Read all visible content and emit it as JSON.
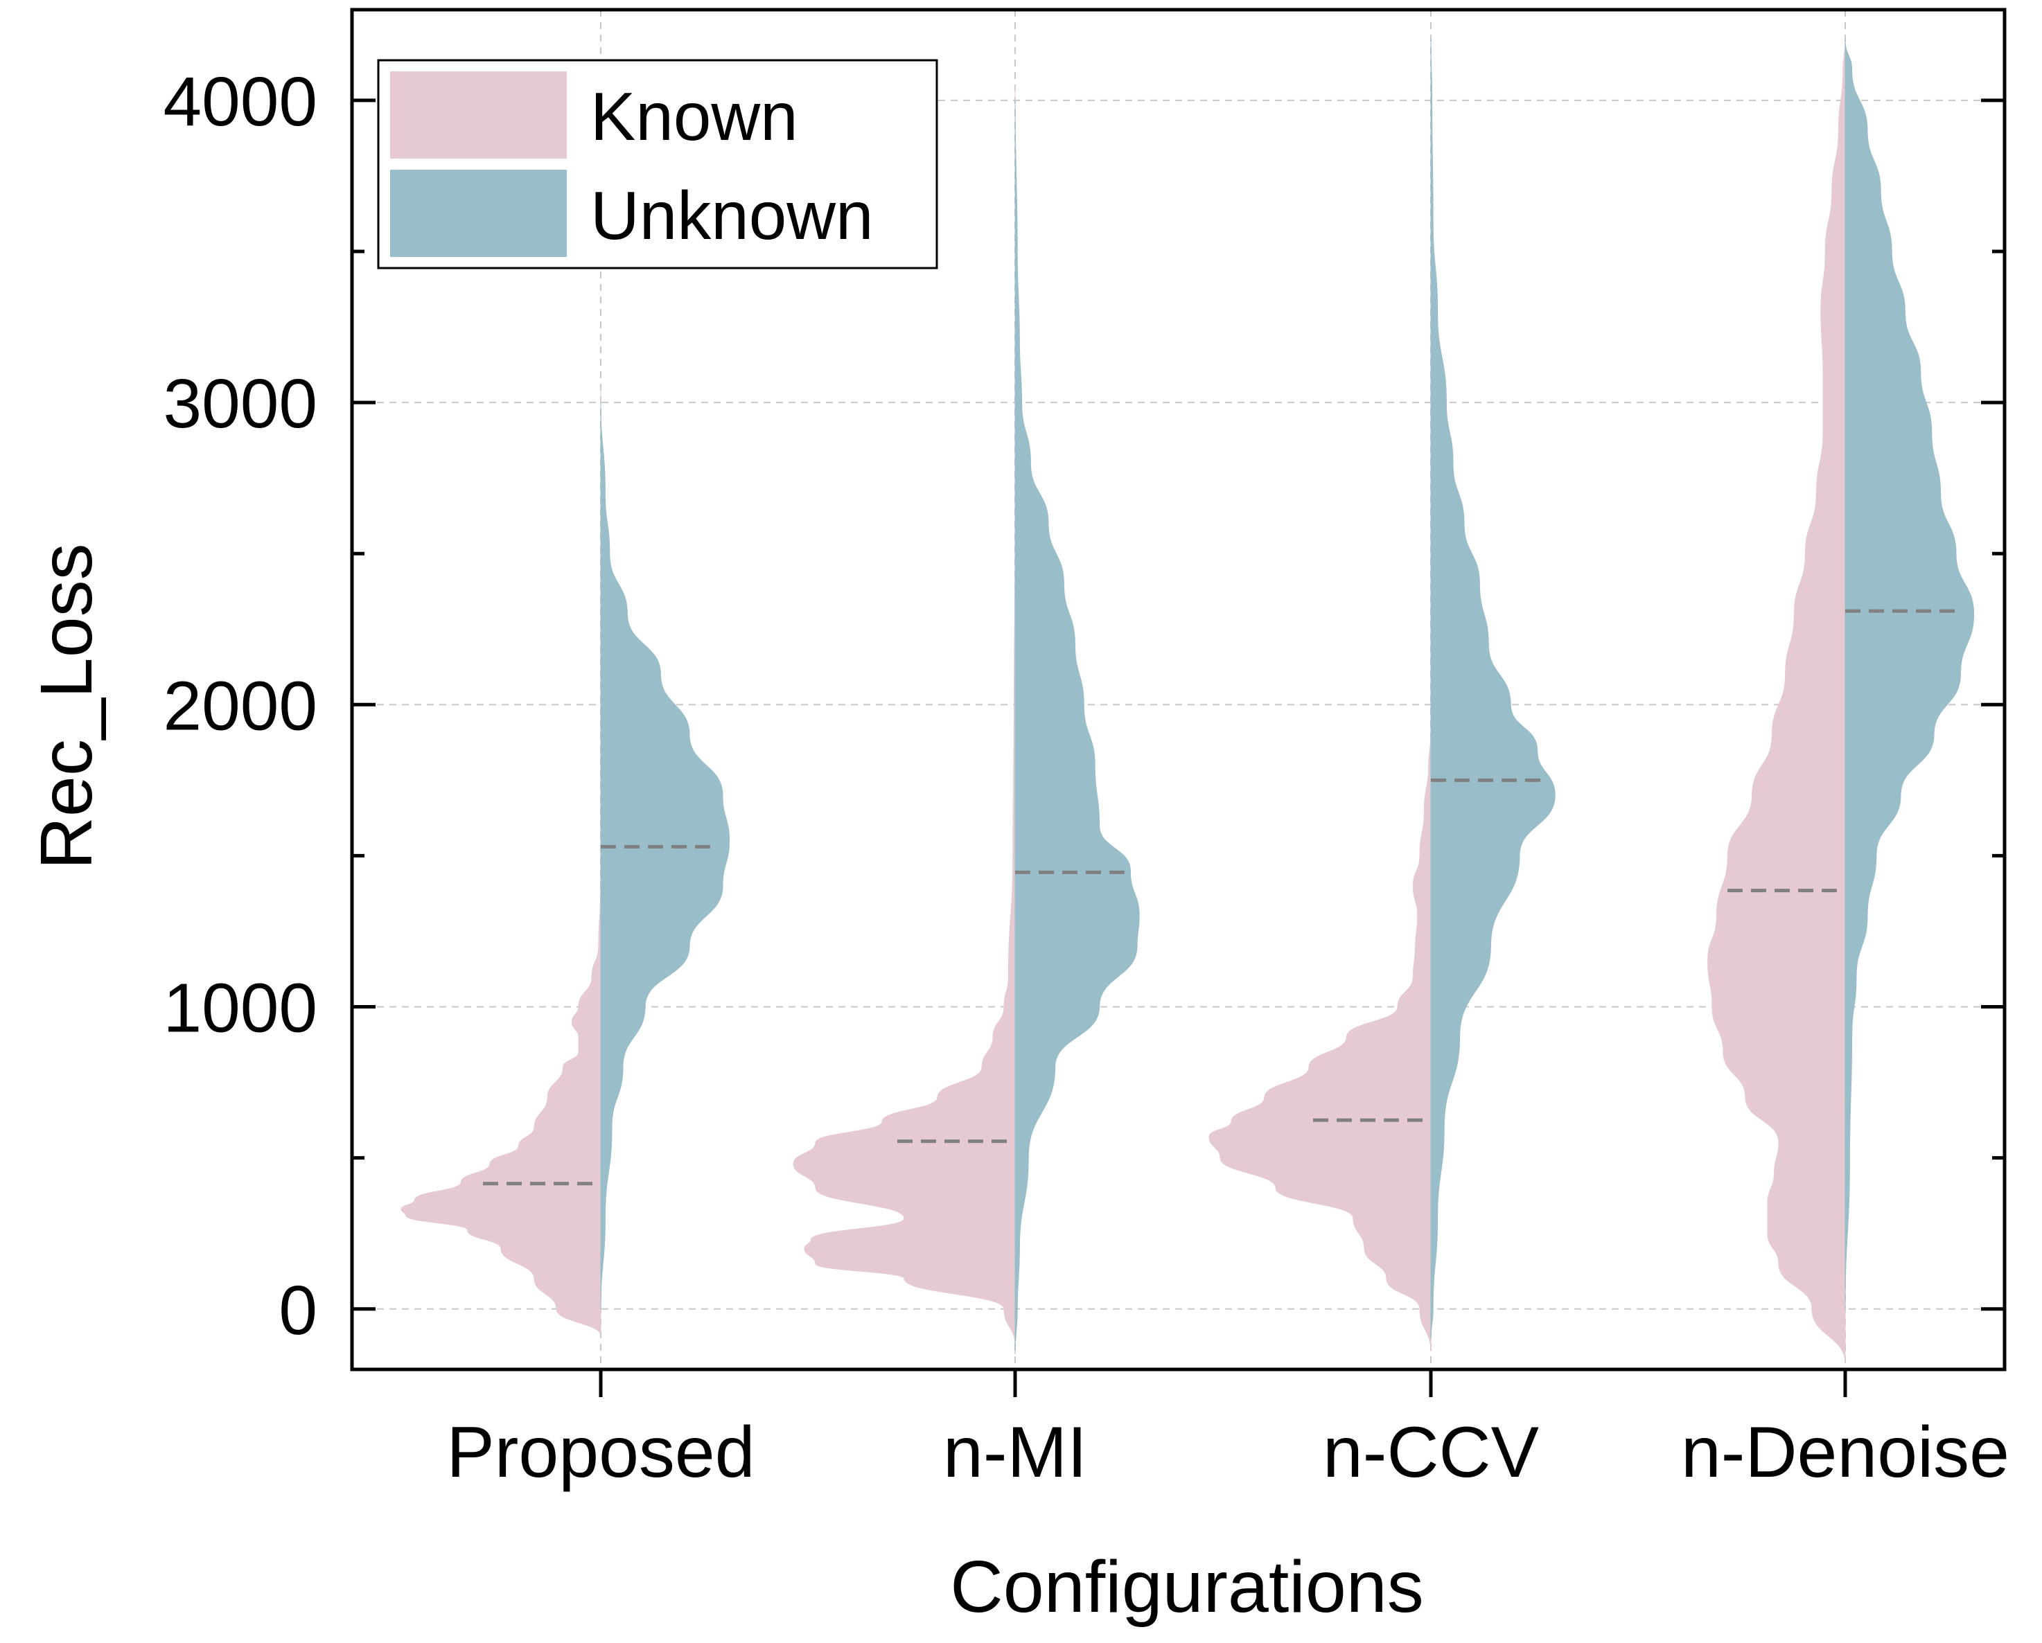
{
  "chart_data": {
    "type": "split-violin",
    "xlabel": "Configurations",
    "ylabel": "Rec_Loss",
    "ylim": [
      -200,
      4300
    ],
    "yticks": [
      0,
      1000,
      2000,
      3000,
      4000
    ],
    "ytick_labels": [
      "0",
      "1000",
      "2000",
      "3000",
      "4000"
    ],
    "minor_yticks": [
      500,
      1500,
      2500,
      3500
    ],
    "grid": "dashed horizontal and vertical",
    "legend_position": "top-left",
    "categories": [
      "Proposed",
      "n-MI",
      "n-CCV",
      "n-Denoise"
    ],
    "series": [
      {
        "name": "Known",
        "side": "left",
        "color": "#e6cad1",
        "medians": [
          415,
          555,
          625,
          1385
        ],
        "profiles": [
          [
            [
              -90,
              0
            ],
            [
              0,
              0.2
            ],
            [
              100,
              0.3
            ],
            [
              200,
              0.45
            ],
            [
              260,
              0.6
            ],
            [
              310,
              0.88
            ],
            [
              330,
              0.9
            ],
            [
              360,
              0.84
            ],
            [
              420,
              0.63
            ],
            [
              480,
              0.5
            ],
            [
              540,
              0.37
            ],
            [
              600,
              0.3
            ],
            [
              700,
              0.24
            ],
            [
              800,
              0.17
            ],
            [
              850,
              0.1
            ],
            [
              900,
              0.1
            ],
            [
              950,
              0.13
            ],
            [
              1000,
              0.1
            ],
            [
              1100,
              0.04
            ],
            [
              1200,
              0.01
            ],
            [
              1400,
              0
            ],
            [
              3050,
              0
            ]
          ],
          [
            [
              -120,
              0
            ],
            [
              0,
              0.05
            ],
            [
              100,
              0.5
            ],
            [
              150,
              0.9
            ],
            [
              200,
              0.95
            ],
            [
              230,
              0.92
            ],
            [
              300,
              0.5
            ],
            [
              400,
              0.9
            ],
            [
              480,
              1.0
            ],
            [
              550,
              0.9
            ],
            [
              620,
              0.6
            ],
            [
              700,
              0.35
            ],
            [
              800,
              0.15
            ],
            [
              900,
              0.1
            ],
            [
              1000,
              0.05
            ],
            [
              1100,
              0.03
            ],
            [
              1500,
              0.01
            ],
            [
              2000,
              0.005
            ],
            [
              2500,
              0
            ],
            [
              4050,
              0
            ]
          ],
          [
            [
              -140,
              0
            ],
            [
              0,
              0.05
            ],
            [
              100,
              0.2
            ],
            [
              200,
              0.3
            ],
            [
              300,
              0.35
            ],
            [
              400,
              0.7
            ],
            [
              500,
              0.95
            ],
            [
              570,
              1.0
            ],
            [
              620,
              0.9
            ],
            [
              700,
              0.75
            ],
            [
              800,
              0.55
            ],
            [
              900,
              0.38
            ],
            [
              1000,
              0.15
            ],
            [
              1100,
              0.08
            ],
            [
              1200,
              0.07
            ],
            [
              1300,
              0.06
            ],
            [
              1400,
              0.08
            ],
            [
              1500,
              0.05
            ],
            [
              1650,
              0.03
            ],
            [
              1800,
              0.01
            ],
            [
              1900,
              0
            ],
            [
              4200,
              0
            ]
          ],
          [
            [
              -180,
              0
            ],
            [
              0,
              0.15
            ],
            [
              150,
              0.3
            ],
            [
              250,
              0.35
            ],
            [
              350,
              0.35
            ],
            [
              450,
              0.32
            ],
            [
              550,
              0.3
            ],
            [
              700,
              0.45
            ],
            [
              850,
              0.55
            ],
            [
              1000,
              0.6
            ],
            [
              1150,
              0.62
            ],
            [
              1300,
              0.58
            ],
            [
              1500,
              0.53
            ],
            [
              1700,
              0.42
            ],
            [
              1900,
              0.33
            ],
            [
              2100,
              0.27
            ],
            [
              2300,
              0.23
            ],
            [
              2500,
              0.18
            ],
            [
              2700,
              0.13
            ],
            [
              2900,
              0.1
            ],
            [
              3100,
              0.1
            ],
            [
              3300,
              0.11
            ],
            [
              3500,
              0.09
            ],
            [
              3700,
              0.06
            ],
            [
              3900,
              0.03
            ],
            [
              4100,
              0.01
            ],
            [
              4200,
              0
            ]
          ]
        ]
      },
      {
        "name": "Unknown",
        "side": "right",
        "color": "#99bdc9",
        "medians": [
          1530,
          1445,
          1750,
          2310
        ],
        "profiles": [
          [
            [
              0,
              0
            ],
            [
              300,
              0.02
            ],
            [
              600,
              0.05
            ],
            [
              800,
              0.1
            ],
            [
              1000,
              0.2
            ],
            [
              1200,
              0.4
            ],
            [
              1400,
              0.55
            ],
            [
              1550,
              0.58
            ],
            [
              1700,
              0.55
            ],
            [
              1900,
              0.4
            ],
            [
              2100,
              0.27
            ],
            [
              2300,
              0.12
            ],
            [
              2500,
              0.04
            ],
            [
              2700,
              0.02
            ],
            [
              3000,
              0
            ]
          ],
          [
            [
              -150,
              0
            ],
            [
              0,
              0.01
            ],
            [
              200,
              0.02
            ],
            [
              500,
              0.06
            ],
            [
              800,
              0.18
            ],
            [
              1000,
              0.38
            ],
            [
              1200,
              0.55
            ],
            [
              1300,
              0.56
            ],
            [
              1450,
              0.52
            ],
            [
              1600,
              0.38
            ],
            [
              1800,
              0.36
            ],
            [
              2000,
              0.31
            ],
            [
              2200,
              0.27
            ],
            [
              2400,
              0.22
            ],
            [
              2600,
              0.15
            ],
            [
              2800,
              0.07
            ],
            [
              3000,
              0.03
            ],
            [
              3200,
              0.02
            ],
            [
              3500,
              0.01
            ],
            [
              4000,
              0
            ]
          ],
          [
            [
              -100,
              0
            ],
            [
              0,
              0.01
            ],
            [
              300,
              0.03
            ],
            [
              600,
              0.06
            ],
            [
              900,
              0.13
            ],
            [
              1200,
              0.27
            ],
            [
              1500,
              0.4
            ],
            [
              1700,
              0.56
            ],
            [
              1850,
              0.48
            ],
            [
              2000,
              0.36
            ],
            [
              2200,
              0.26
            ],
            [
              2400,
              0.22
            ],
            [
              2600,
              0.15
            ],
            [
              2800,
              0.1
            ],
            [
              3000,
              0.07
            ],
            [
              3300,
              0.03
            ],
            [
              3600,
              0.01
            ],
            [
              4000,
              0.005
            ],
            [
              4200,
              0
            ]
          ],
          [
            [
              0,
              0
            ],
            [
              500,
              0.02
            ],
            [
              900,
              0.03
            ],
            [
              1100,
              0.05
            ],
            [
              1300,
              0.1
            ],
            [
              1500,
              0.14
            ],
            [
              1700,
              0.25
            ],
            [
              1900,
              0.4
            ],
            [
              2100,
              0.52
            ],
            [
              2300,
              0.58
            ],
            [
              2500,
              0.5
            ],
            [
              2700,
              0.43
            ],
            [
              2900,
              0.39
            ],
            [
              3100,
              0.34
            ],
            [
              3300,
              0.27
            ],
            [
              3500,
              0.21
            ],
            [
              3700,
              0.16
            ],
            [
              3900,
              0.1
            ],
            [
              4100,
              0.03
            ],
            [
              4200,
              0
            ]
          ]
        ]
      }
    ]
  }
}
